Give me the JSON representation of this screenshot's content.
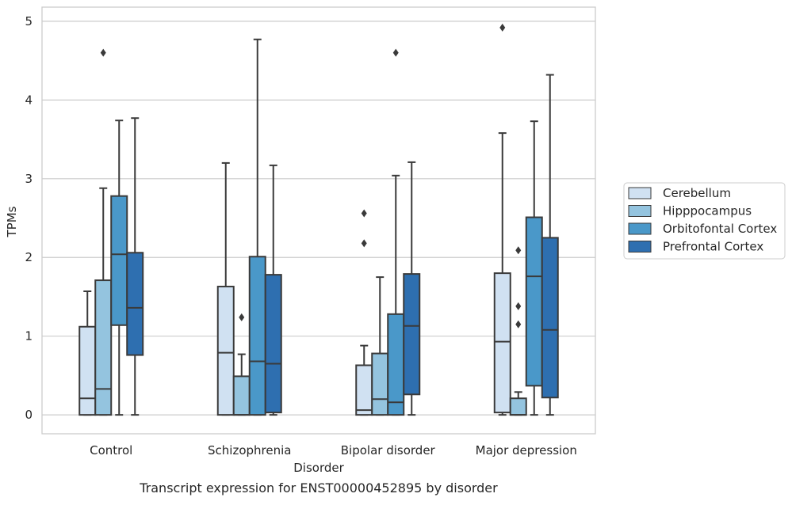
{
  "chart_data": {
    "type": "box",
    "title": "Transcript expression for ENST00000452895 by disorder",
    "xlabel": "Disorder",
    "ylabel": "TPMs",
    "ylim": [
      -0.24,
      5.18
    ],
    "yticks": [
      "0",
      "1",
      "2",
      "3",
      "4",
      "5"
    ],
    "grid": true,
    "legend_position": "right",
    "categories": [
      "Control",
      "Schizophrenia",
      "Bipolar disorder",
      "Major depression"
    ],
    "series": [
      {
        "name": "Cerebellum",
        "color": "#d0e1f2",
        "boxes": [
          {
            "whisker_low": 0,
            "q1": 0,
            "median": 0.21,
            "q3": 1.12,
            "whisker_high": 1.57,
            "outliers": []
          },
          {
            "whisker_low": 0,
            "q1": 0,
            "median": 0.79,
            "q3": 1.63,
            "whisker_high": 3.2,
            "outliers": []
          },
          {
            "whisker_low": 0,
            "q1": 0,
            "median": 0.06,
            "q3": 0.63,
            "whisker_high": 0.88,
            "outliers": [
              2.18,
              2.56
            ]
          },
          {
            "whisker_low": 0,
            "q1": 0.03,
            "median": 0.93,
            "q3": 1.8,
            "whisker_high": 3.58,
            "outliers": [
              4.92
            ]
          }
        ]
      },
      {
        "name": "Hipppocampus",
        "color": "#94c4df",
        "boxes": [
          {
            "whisker_low": 0,
            "q1": 0,
            "median": 0.33,
            "q3": 1.71,
            "whisker_high": 2.88,
            "outliers": [
              4.6
            ]
          },
          {
            "whisker_low": 0,
            "q1": 0,
            "median": 0,
            "q3": 0.49,
            "whisker_high": 0.77,
            "outliers": [
              1.24
            ]
          },
          {
            "whisker_low": 0,
            "q1": 0,
            "median": 0.2,
            "q3": 0.78,
            "whisker_high": 1.75,
            "outliers": []
          },
          {
            "whisker_low": 0,
            "q1": 0,
            "median": 0,
            "q3": 0.21,
            "whisker_high": 0.29,
            "outliers": [
              1.15,
              1.38,
              2.09
            ]
          }
        ]
      },
      {
        "name": "Orbitofontal Cortex",
        "color": "#4a98c9",
        "boxes": [
          {
            "whisker_low": 0,
            "q1": 1.14,
            "median": 2.04,
            "q3": 2.78,
            "whisker_high": 3.74,
            "outliers": []
          },
          {
            "whisker_low": 0,
            "q1": 0,
            "median": 0.68,
            "q3": 2.01,
            "whisker_high": 4.77,
            "outliers": []
          },
          {
            "whisker_low": 0,
            "q1": 0,
            "median": 0.16,
            "q3": 1.28,
            "whisker_high": 3.04,
            "outliers": [
              4.6
            ]
          },
          {
            "whisker_low": 0,
            "q1": 0.37,
            "median": 1.76,
            "q3": 2.51,
            "whisker_high": 3.73,
            "outliers": []
          }
        ]
      },
      {
        "name": "Prefrontal Cortex",
        "color": "#2e6fb0",
        "boxes": [
          {
            "whisker_low": 0,
            "q1": 0.76,
            "median": 1.36,
            "q3": 2.06,
            "whisker_high": 3.77,
            "outliers": []
          },
          {
            "whisker_low": 0,
            "q1": 0.03,
            "median": 0.65,
            "q3": 1.78,
            "whisker_high": 3.17,
            "outliers": []
          },
          {
            "whisker_low": 0,
            "q1": 0.26,
            "median": 1.13,
            "q3": 1.79,
            "whisker_high": 3.21,
            "outliers": []
          },
          {
            "whisker_low": 0,
            "q1": 0.22,
            "median": 1.08,
            "q3": 2.25,
            "whisker_high": 4.32,
            "outliers": []
          }
        ]
      }
    ]
  }
}
